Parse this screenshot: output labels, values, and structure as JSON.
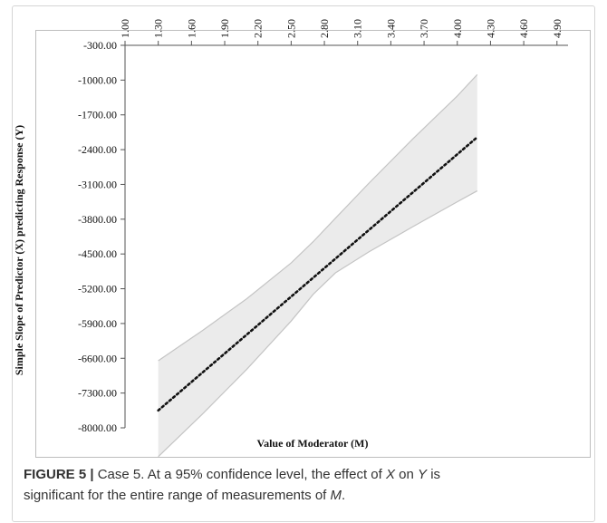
{
  "chart_data": {
    "type": "line",
    "title": "",
    "xlabel": "Value of Moderator (M)",
    "ylabel": "Simple Slope of Predictor (X) predicting Response (Y)",
    "xlim": [
      1.0,
      5.0
    ],
    "ylim": [
      -8000,
      -300
    ],
    "x_ticks": [
      "1.00",
      "1.30",
      "1.60",
      "1.90",
      "2.20",
      "2.50",
      "2.80",
      "3.10",
      "3.40",
      "3.70",
      "4.00",
      "4.30",
      "4.60",
      "4.90"
    ],
    "y_ticks": [
      "-300.00",
      "-1000.00",
      "-1700.00",
      "-2400.00",
      "-3100.00",
      "-3800.00",
      "-4500.00",
      "-5200.00",
      "-5900.00",
      "-6600.00",
      "-7300.00",
      "-8000.00"
    ],
    "x_axis_position": "top",
    "grid": false,
    "series": [
      {
        "role": "simple-slope",
        "x": [
          1.3,
          4.18
        ],
        "y": [
          -7650,
          -2150
        ]
      },
      {
        "role": "upper-ci",
        "x": [
          1.3,
          1.7,
          2.1,
          2.5,
          2.7,
          2.9,
          3.2,
          3.6,
          4.0,
          4.18
        ],
        "y": [
          -6650,
          -6040,
          -5400,
          -4680,
          -4250,
          -3780,
          -3080,
          -2180,
          -1320,
          -890
        ]
      },
      {
        "role": "lower-ci",
        "x": [
          1.3,
          1.7,
          2.1,
          2.5,
          2.7,
          2.9,
          3.2,
          3.6,
          4.0,
          4.18
        ],
        "y": [
          -8580,
          -7720,
          -6820,
          -5850,
          -5310,
          -4880,
          -4460,
          -3950,
          -3450,
          -3230
        ]
      }
    ],
    "colors": {
      "line": "#111111",
      "band_fill": "#ebebeb",
      "band_edge": "#c4c4c4"
    }
  },
  "caption": {
    "label": "FIGURE 5 |",
    "line1": " Case 5. At a 95% confidence level, the effect of ",
    "var_x": "X",
    "mid1": " on ",
    "var_y": "Y",
    "mid2": " is",
    "line2": "significant for the entire range of measurements of ",
    "var_m": "M",
    "end": "."
  }
}
